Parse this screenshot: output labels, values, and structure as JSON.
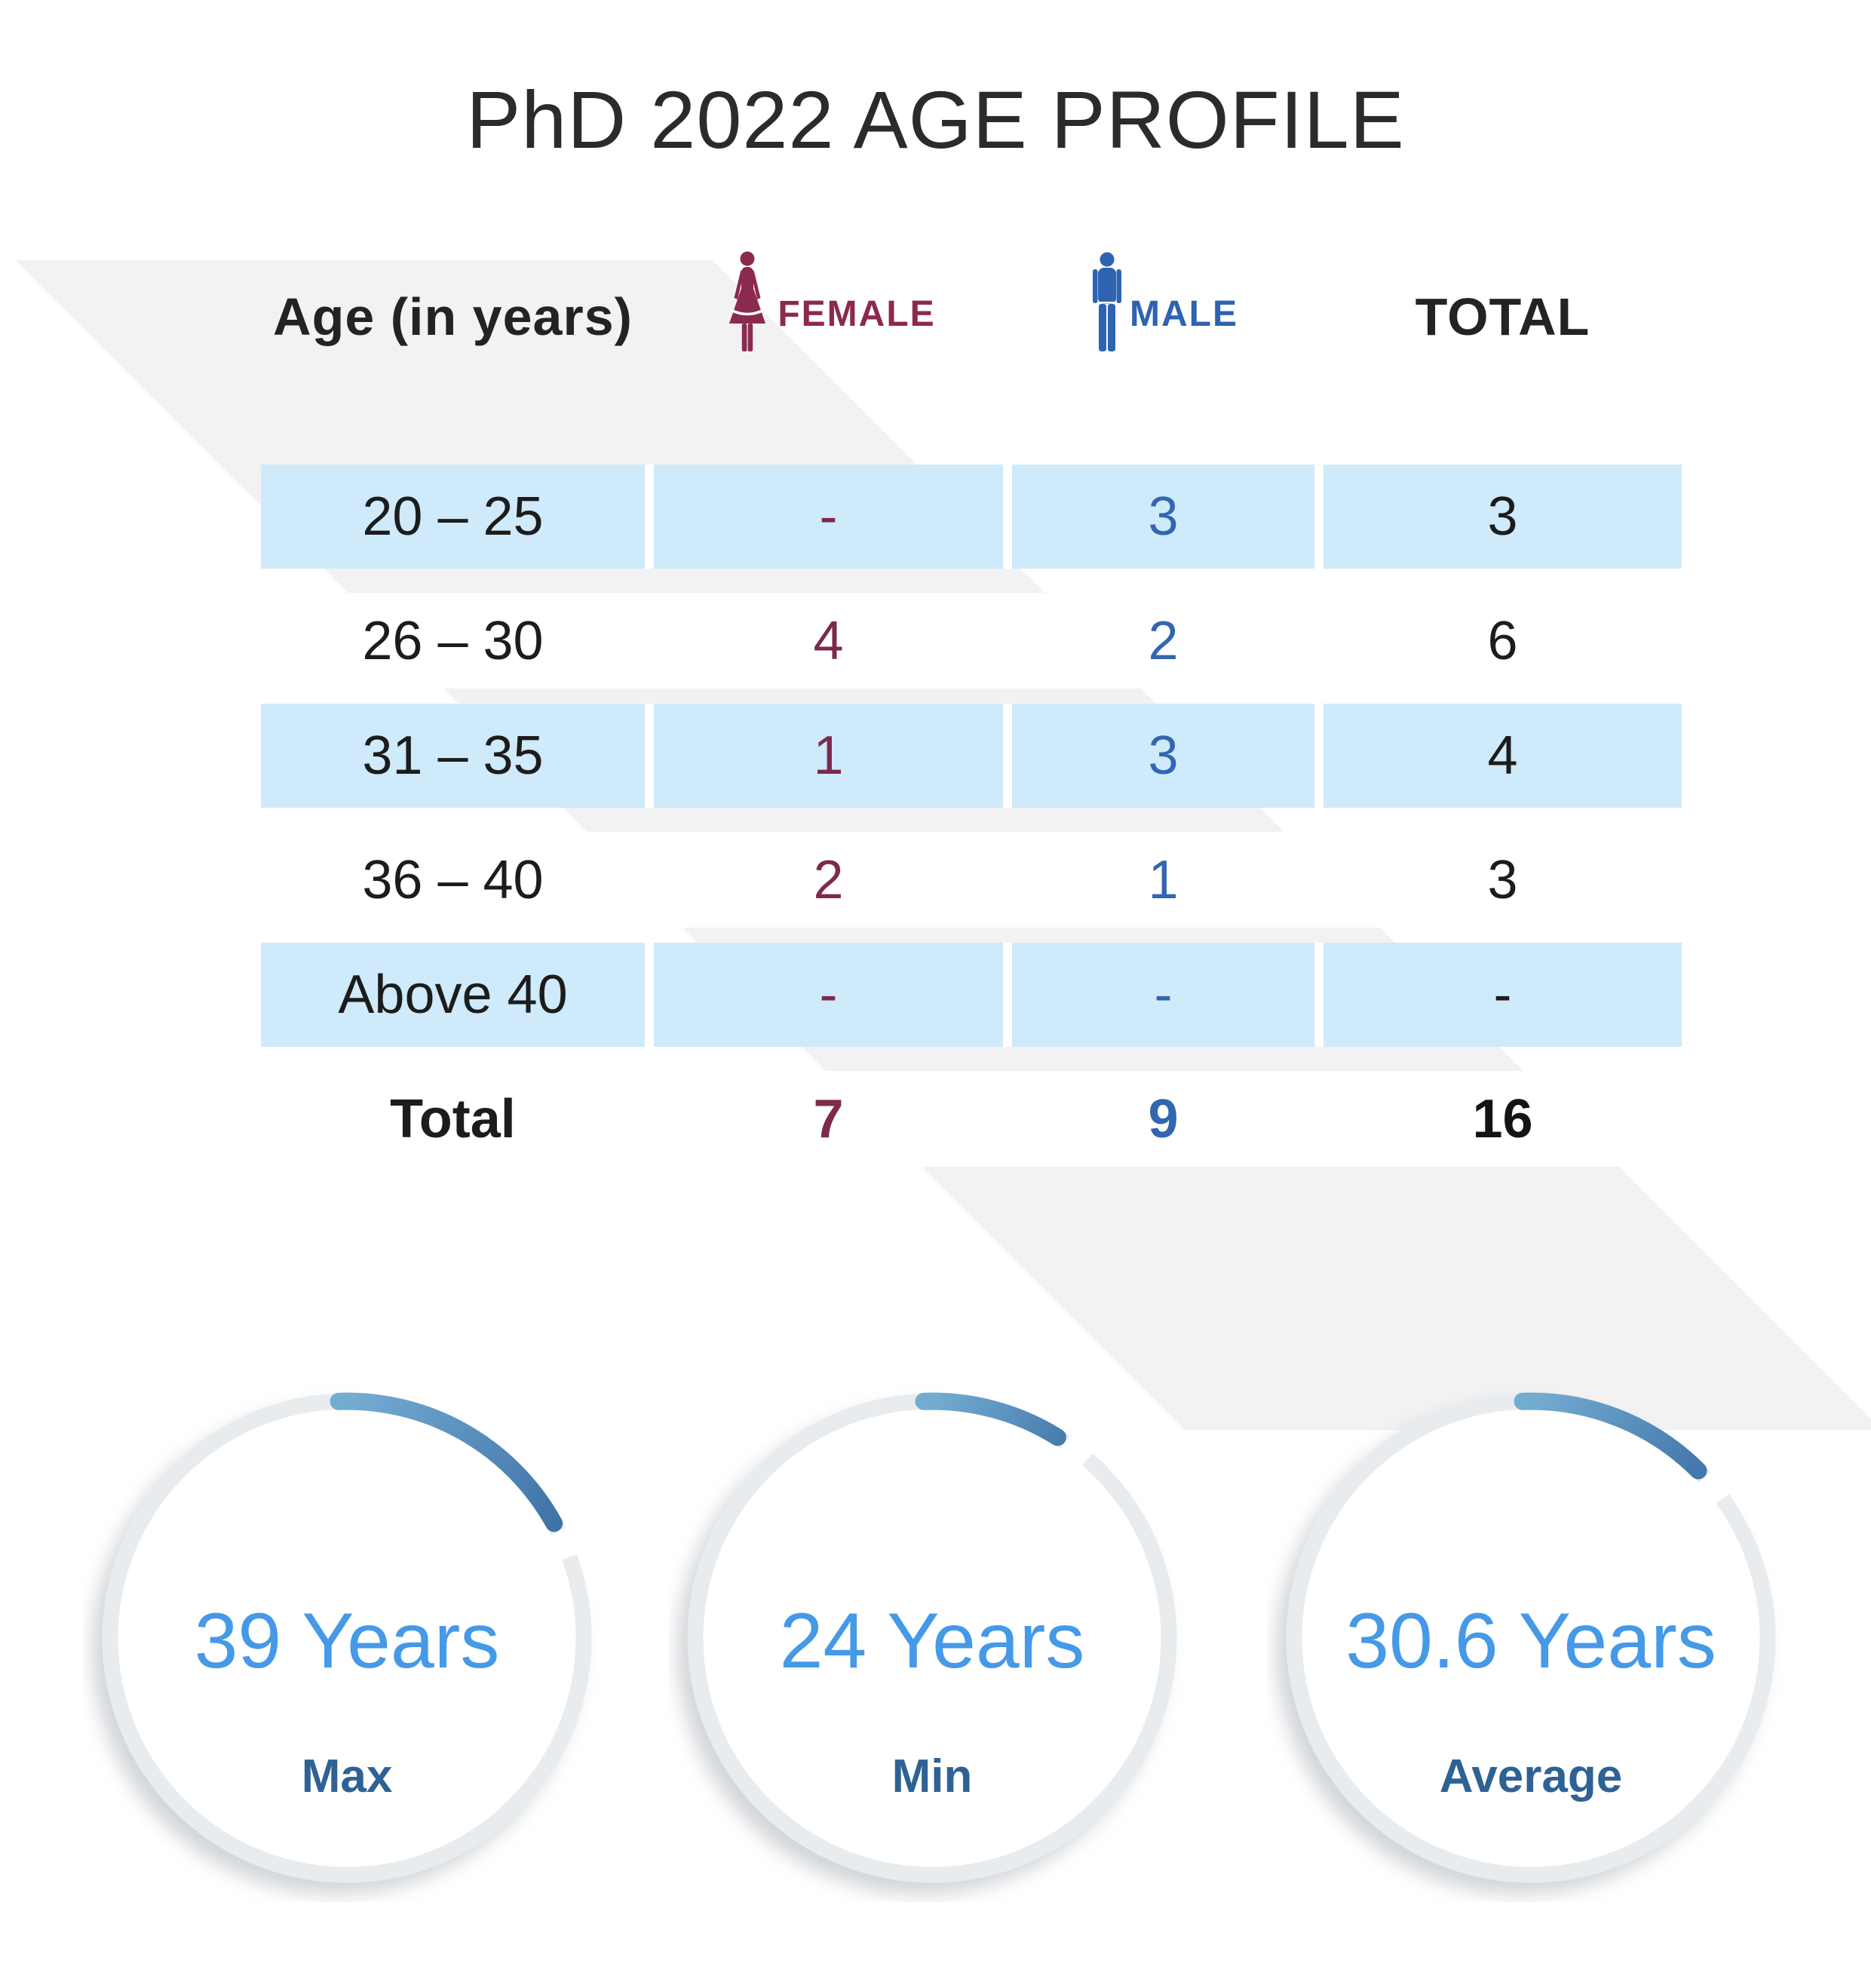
{
  "title": "PhD 2022 AGE PROFILE",
  "table": {
    "header": {
      "age": "Age (in years)",
      "female": "FEMALE",
      "male": "MALE",
      "total": "TOTAL"
    },
    "rows": [
      {
        "age": "20 – 25",
        "female": "-",
        "male": "3",
        "total": "3"
      },
      {
        "age": "26 – 30",
        "female": "4",
        "male": "2",
        "total": "6"
      },
      {
        "age": "31 – 35",
        "female": "1",
        "male": "3",
        "total": "4"
      },
      {
        "age": "36 – 40",
        "female": "2",
        "male": "1",
        "total": "3"
      },
      {
        "age": "Above 40",
        "female": "-",
        "male": "-",
        "total": "-"
      },
      {
        "age": "Total",
        "female": "7",
        "male": "9",
        "total": "16"
      }
    ]
  },
  "gauges": [
    {
      "value": "39 Years",
      "label": "Max",
      "sweep_deg": 61
    },
    {
      "value": "24 Years",
      "label": "Min",
      "sweep_deg": 32
    },
    {
      "value": "30.6 Years",
      "label": "Average",
      "sweep_deg": 45
    }
  ],
  "colors": {
    "female_accent": "#8b2a4f",
    "male_accent": "#2e63b2",
    "row_highlight": "#cfeafa",
    "background_band": "#f2f2f3",
    "gauge_value_text": "#4599e7",
    "gauge_label_text": "#2e6294",
    "gauge_arc_light": "#74acd1",
    "gauge_arc_dark": "#3a6da4",
    "gauge_track": "#e8ecee"
  },
  "chart_data": {
    "type": "table",
    "title": "PhD 2022 AGE PROFILE",
    "columns": [
      "Age (in years)",
      "FEMALE",
      "MALE",
      "TOTAL"
    ],
    "rows": [
      [
        "20 – 25",
        null,
        3,
        3
      ],
      [
        "26 – 30",
        4,
        2,
        6
      ],
      [
        "31 – 35",
        1,
        3,
        4
      ],
      [
        "36 – 40",
        2,
        1,
        3
      ],
      [
        "Above 40",
        null,
        null,
        null
      ],
      [
        "Total",
        7,
        9,
        16
      ]
    ],
    "stats": {
      "max_years": 39,
      "min_years": 24,
      "average_years": 30.6
    }
  }
}
